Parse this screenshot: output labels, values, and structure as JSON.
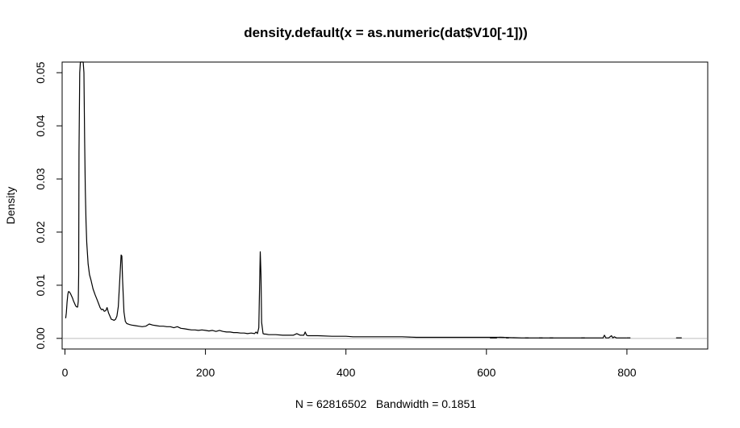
{
  "chart_data": {
    "type": "line",
    "title": "density.default(x = as.numeric(dat$V10[-1]))",
    "xlabel": "N = 62816502   Bandwidth = 0.1851",
    "ylabel": "Density",
    "xlim": [
      -4,
      915
    ],
    "ylim": [
      -0.002,
      0.052
    ],
    "x_ticks": [
      0,
      200,
      400,
      600,
      800
    ],
    "x_tick_labels": [
      "0",
      "200",
      "400",
      "600",
      "800"
    ],
    "y_ticks": [
      0.0,
      0.01,
      0.02,
      0.03,
      0.04,
      0.05
    ],
    "y_tick_labels": [
      "0.00",
      "0.01",
      "0.02",
      "0.03",
      "0.04",
      "0.05"
    ],
    "zero_line": true,
    "grid": false,
    "line_color": "#000000",
    "zero_line_color": "#bebebe",
    "series": [
      {
        "x": [
          1,
          2,
          3,
          4,
          5,
          6,
          7,
          8,
          9,
          10,
          11,
          12,
          13,
          14,
          15,
          16,
          17,
          18,
          19,
          19.5,
          20,
          21,
          22,
          23,
          24,
          25,
          26,
          27,
          28,
          29,
          30,
          31,
          33,
          35,
          37,
          40,
          43,
          46,
          48,
          50,
          52,
          54,
          56,
          58,
          60,
          62,
          64,
          66,
          68,
          70,
          72,
          74,
          76,
          78,
          80,
          81,
          82,
          84,
          86,
          88,
          90,
          92,
          95,
          100,
          105,
          110,
          115,
          120,
          125,
          130,
          135,
          140,
          145,
          150,
          155,
          160,
          165,
          170,
          175,
          180,
          185,
          190,
          195,
          200,
          205,
          210,
          215,
          220,
          225,
          230,
          235,
          240,
          245,
          250,
          255,
          260,
          265,
          270,
          272,
          274,
          276,
          278,
          279,
          280,
          282,
          284,
          286,
          290,
          300,
          310,
          320,
          325,
          330,
          335,
          340,
          342,
          344,
          346,
          350,
          360,
          380,
          400,
          410,
          420,
          440,
          460,
          480,
          500,
          520,
          540,
          560,
          580,
          600,
          620,
          650,
          700,
          750,
          766,
          768,
          770,
          772,
          774,
          778,
          780,
          782,
          785,
          790,
          800
        ],
        "y": [
          0.0038,
          0.0048,
          0.0068,
          0.0082,
          0.0088,
          0.0088,
          0.0086,
          0.0084,
          0.0081,
          0.0078,
          0.0075,
          0.0071,
          0.0068,
          0.0065,
          0.0062,
          0.006,
          0.0059,
          0.0059,
          0.007,
          0.012,
          0.035,
          0.05,
          0.055,
          0.055,
          0.055,
          0.055,
          0.055,
          0.05,
          0.037,
          0.028,
          0.022,
          0.018,
          0.014,
          0.012,
          0.011,
          0.0093,
          0.0082,
          0.0072,
          0.0065,
          0.0058,
          0.0054,
          0.0055,
          0.0051,
          0.0052,
          0.0058,
          0.0048,
          0.0042,
          0.0036,
          0.0035,
          0.0034,
          0.0036,
          0.0042,
          0.006,
          0.011,
          0.0157,
          0.0155,
          0.011,
          0.005,
          0.0032,
          0.0028,
          0.0027,
          0.0026,
          0.0025,
          0.0024,
          0.0023,
          0.0022,
          0.0023,
          0.0027,
          0.0025,
          0.0024,
          0.0023,
          0.0023,
          0.0022,
          0.0022,
          0.002,
          0.0022,
          0.0019,
          0.0018,
          0.0017,
          0.0016,
          0.0016,
          0.0015,
          0.0016,
          0.0015,
          0.0014,
          0.0015,
          0.0013,
          0.0015,
          0.0013,
          0.0012,
          0.0012,
          0.0011,
          0.0011,
          0.001,
          0.001,
          0.0009,
          0.001,
          0.0009,
          0.0012,
          0.0009,
          0.002,
          0.0163,
          0.012,
          0.003,
          0.0009,
          0.0008,
          0.0008,
          0.0007,
          0.0007,
          0.0006,
          0.0006,
          0.0006,
          0.0009,
          0.0006,
          0.0006,
          0.0012,
          0.0006,
          0.0005,
          0.0005,
          0.0005,
          0.0004,
          0.0004,
          0.0003,
          0.0003,
          0.0003,
          0.0003,
          0.0003,
          0.0002,
          0.0002,
          0.0002,
          0.0002,
          0.0002,
          0.0002,
          0.0002,
          0.0001,
          0.0001,
          0.0001,
          0.0001,
          0.0006,
          0.0001,
          0.0001,
          0.0001,
          0.0005,
          0.0001,
          0.0003,
          0.0001,
          0.0001,
          0.0001
        ]
      }
    ],
    "sparse_segments": [
      [
        605,
        615,
        0.0001
      ],
      [
        618,
        625,
        0.0002
      ],
      [
        628,
        632,
        0.0001
      ],
      [
        655,
        660,
        0.0001
      ],
      [
        675,
        680,
        0.0001
      ],
      [
        690,
        695,
        0.0001
      ],
      [
        735,
        740,
        0.0001
      ],
      [
        800,
        805,
        0.0001
      ],
      [
        870,
        878,
        0.0001
      ]
    ]
  }
}
